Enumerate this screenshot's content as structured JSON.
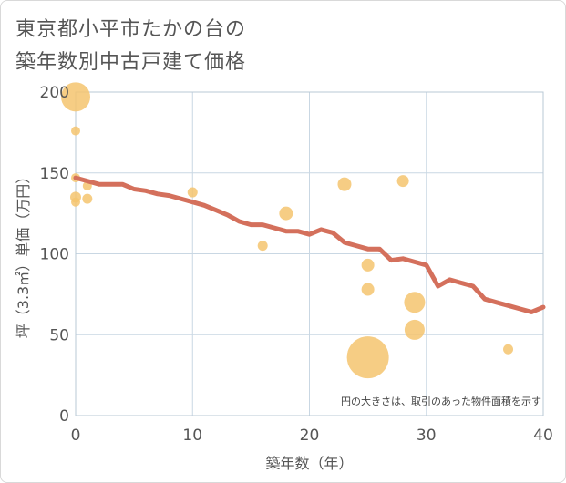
{
  "title": {
    "line1": "東京都小平市たかの台の",
    "line2": "築年数別中古戸建て価格"
  },
  "note": "円の大きさは、取引のあった物件面積を示す",
  "colors": {
    "line": "#d4705c",
    "bubble": "#f5c46e",
    "grid": "#c9d7e3",
    "plot_border": "#b9c8d6"
  },
  "chart_data": {
    "type": "scatter",
    "xlabel": "築年数（年）",
    "ylabel": "坪（3.3㎡）単価（万円）",
    "xlim": [
      0,
      40
    ],
    "ylim": [
      0,
      200
    ],
    "xticks": [
      0,
      10,
      20,
      30,
      40
    ],
    "yticks": [
      0,
      50,
      100,
      150,
      200
    ],
    "grid": true,
    "bubbles": [
      {
        "x": 0,
        "y": 197,
        "size": 3.2
      },
      {
        "x": 0,
        "y": 176,
        "size": 1.0
      },
      {
        "x": 0,
        "y": 147,
        "size": 1.0
      },
      {
        "x": 0,
        "y": 135,
        "size": 1.2
      },
      {
        "x": 0,
        "y": 132,
        "size": 1.0
      },
      {
        "x": 1,
        "y": 142,
        "size": 1.0
      },
      {
        "x": 1,
        "y": 134,
        "size": 1.1
      },
      {
        "x": 10,
        "y": 138,
        "size": 1.1
      },
      {
        "x": 16,
        "y": 105,
        "size": 1.1
      },
      {
        "x": 18,
        "y": 125,
        "size": 1.5
      },
      {
        "x": 23,
        "y": 143,
        "size": 1.5
      },
      {
        "x": 25,
        "y": 93,
        "size": 1.4
      },
      {
        "x": 25,
        "y": 78,
        "size": 1.4
      },
      {
        "x": 25,
        "y": 36,
        "size": 4.6
      },
      {
        "x": 28,
        "y": 145,
        "size": 1.3
      },
      {
        "x": 29,
        "y": 70,
        "size": 2.3
      },
      {
        "x": 29,
        "y": 53,
        "size": 2.2
      },
      {
        "x": 37,
        "y": 41,
        "size": 1.1
      }
    ],
    "trend": {
      "x": [
        0,
        1,
        2,
        3,
        4,
        5,
        6,
        7,
        8,
        9,
        10,
        11,
        12,
        13,
        14,
        15,
        16,
        17,
        18,
        19,
        20,
        21,
        22,
        23,
        24,
        25,
        26,
        27,
        28,
        29,
        30,
        31,
        32,
        33,
        34,
        35,
        36,
        37,
        38,
        39,
        40
      ],
      "y": [
        147,
        145,
        143,
        143,
        143,
        140,
        139,
        137,
        136,
        134,
        132,
        130,
        127,
        124,
        120,
        118,
        118,
        116,
        114,
        114,
        112,
        115,
        113,
        107,
        105,
        103,
        103,
        96,
        97,
        95,
        93,
        80,
        84,
        82,
        80,
        72,
        70,
        68,
        66,
        64,
        67
      ]
    }
  }
}
